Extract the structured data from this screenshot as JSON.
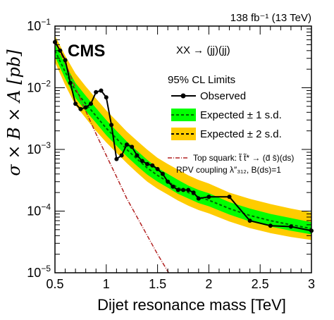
{
  "chart_data": {
    "type": "line",
    "lumi_label": "138 fb⁻¹ (13 TeV)",
    "cms_label": "CMS",
    "process_label": "XX → (jj)(jj)",
    "legend_title": "95% CL Limits",
    "xlabel": "Dijet resonance mass [TeV]",
    "ylabel": "σ × B × A [pb]",
    "xlim": [
      0.5,
      3.0
    ],
    "ylim": [
      1e-05,
      0.1
    ],
    "y_scale": "log",
    "x_ticks": [
      0.5,
      1,
      1.5,
      2,
      2.5,
      3
    ],
    "x_tick_labels": [
      "0.5",
      "1",
      "1.5",
      "2",
      "2.5",
      "3"
    ],
    "y_ticks": [
      1e-05,
      0.0001,
      0.001,
      0.01,
      0.1
    ],
    "y_tick_labels": [
      {
        "base": "10",
        "exp": "−5"
      },
      {
        "base": "10",
        "exp": "−4"
      },
      {
        "base": "10",
        "exp": "−3"
      },
      {
        "base": "10",
        "exp": "−2"
      },
      {
        "base": "10",
        "exp": "−1"
      }
    ],
    "colors": {
      "observed": "#000000",
      "expected": "#006400",
      "band1": "#00ff00",
      "band2": "#ffcc00",
      "theory": "#b22222"
    },
    "series": [
      {
        "name": "Observed",
        "style": "solid-with-markers",
        "x": [
          0.5,
          0.55,
          0.6,
          0.65,
          0.7,
          0.75,
          0.8,
          0.85,
          0.9,
          0.95,
          1.0,
          1.05,
          1.1,
          1.15,
          1.2,
          1.25,
          1.3,
          1.35,
          1.4,
          1.45,
          1.5,
          1.55,
          1.6,
          1.65,
          1.7,
          1.75,
          1.8,
          1.85,
          1.9,
          2.0,
          2.2,
          2.4,
          2.6,
          2.8,
          3.0
        ],
        "y": [
          0.055,
          0.04,
          0.028,
          0.012,
          0.0055,
          0.0045,
          0.0048,
          0.0055,
          0.0085,
          0.009,
          0.007,
          0.0025,
          0.0007,
          0.0008,
          0.0012,
          0.0011,
          0.0008,
          0.00065,
          0.00058,
          0.00055,
          0.00048,
          0.0004,
          0.0003,
          0.00025,
          0.00022,
          0.00022,
          0.00022,
          0.0002,
          0.00016,
          0.00017,
          0.00017,
          7e-05,
          5.8e-05,
          5.6e-05,
          4.8e-05
        ]
      },
      {
        "name": "Expected ± 1 s.d.",
        "style": "dashed",
        "x": [
          0.5,
          0.6,
          0.7,
          0.8,
          0.9,
          1.0,
          1.1,
          1.2,
          1.3,
          1.4,
          1.5,
          1.6,
          1.7,
          1.8,
          1.9,
          2.0,
          2.2,
          2.4,
          2.6,
          2.8,
          3.0
        ],
        "y": [
          0.04,
          0.018,
          0.009,
          0.0055,
          0.0035,
          0.0022,
          0.0015,
          0.001,
          0.0007,
          0.0005,
          0.00038,
          0.0003,
          0.00024,
          0.0002,
          0.00017,
          0.00015,
          0.00011,
          8.5e-05,
          7e-05,
          6e-05,
          5.2e-05
        ],
        "band_low": [
          0.032,
          0.014,
          0.0068,
          0.0042,
          0.0027,
          0.0017,
          0.00115,
          0.00077,
          0.00054,
          0.00039,
          0.0003,
          0.00024,
          0.00019,
          0.00016,
          0.000135,
          0.00012,
          8.8e-05,
          6.8e-05,
          5.6e-05,
          4.8e-05,
          4.2e-05
        ],
        "band_high": [
          0.052,
          0.024,
          0.012,
          0.0074,
          0.0047,
          0.003,
          0.002,
          0.00135,
          0.00095,
          0.00068,
          0.0005,
          0.0004,
          0.00032,
          0.00026,
          0.00022,
          0.000195,
          0.00014,
          0.00011,
          9e-05,
          7.7e-05,
          6.6e-05
        ]
      },
      {
        "name": "Expected ± 2 s.d.",
        "style": "dashed",
        "x": [
          0.5,
          0.6,
          0.7,
          0.8,
          0.9,
          1.0,
          1.1,
          1.2,
          1.3,
          1.4,
          1.5,
          1.6,
          1.7,
          1.8,
          1.9,
          2.0,
          2.2,
          2.4,
          2.6,
          2.8,
          3.0
        ],
        "band_low": [
          0.026,
          0.011,
          0.0052,
          0.0032,
          0.002,
          0.0013,
          0.00088,
          0.0006,
          0.00042,
          0.0003,
          0.00023,
          0.000185,
          0.000148,
          0.000122,
          0.000104,
          9.2e-05,
          6.8e-05,
          5.3e-05,
          4.4e-05,
          3.8e-05,
          3.4e-05
        ],
        "band_high": [
          0.07,
          0.033,
          0.017,
          0.0105,
          0.0067,
          0.0043,
          0.0029,
          0.00195,
          0.00138,
          0.00099,
          0.00073,
          0.00058,
          0.00047,
          0.00038,
          0.00032,
          0.00028,
          0.0002,
          0.000158,
          0.00013,
          0.00011,
          9.5e-05
        ]
      },
      {
        "name": "Top squark: t̃ t̃* → (d̄ s̄)(ds)",
        "style": "dash-dot",
        "x": [
          0.5,
          0.6,
          0.7,
          0.8,
          0.9,
          1.0,
          1.1,
          1.2,
          1.3,
          1.4,
          1.5,
          1.6,
          1.65
        ],
        "y": [
          0.06,
          0.025,
          0.01,
          0.0042,
          0.0018,
          0.0008,
          0.00036,
          0.00016,
          8e-05,
          4e-05,
          2e-05,
          1.05e-05,
          7.8e-06
        ]
      }
    ],
    "theory_line2": "RPV coupling λ″₃₁₂, B(ds)=1",
    "legend_placement": "top-right",
    "grid": false
  }
}
